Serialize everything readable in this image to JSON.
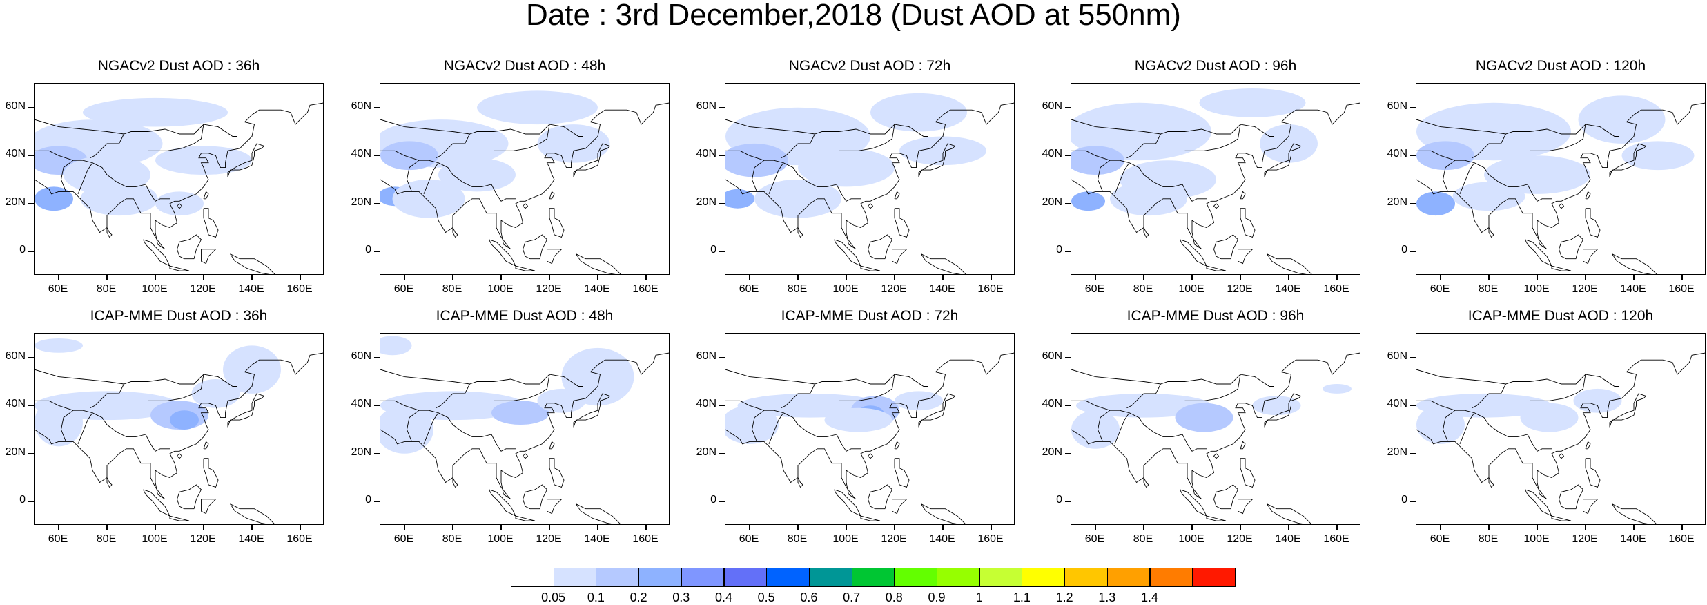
{
  "title": "Date : 3rd December,2018 (Dust AOD at 550nm)",
  "panels": [
    {
      "title": "NGACv2 Dust AOD : 36h"
    },
    {
      "title": "NGACv2 Dust AOD : 48h"
    },
    {
      "title": "NGACv2 Dust AOD : 72h"
    },
    {
      "title": "NGACv2 Dust AOD : 96h"
    },
    {
      "title": "NGACv2 Dust AOD : 120h"
    },
    {
      "title": "ICAP-MME Dust AOD : 36h"
    },
    {
      "title": "ICAP-MME Dust AOD : 48h"
    },
    {
      "title": "ICAP-MME Dust AOD : 72h"
    },
    {
      "title": "ICAP-MME Dust AOD : 96h"
    },
    {
      "title": "ICAP-MME Dust AOD : 120h"
    }
  ],
  "axes": {
    "lat_ticks": [
      "60N",
      "40N",
      "20N",
      "0"
    ],
    "lon_ticks": [
      "60E",
      "80E",
      "100E",
      "120E",
      "140E",
      "160E"
    ]
  },
  "colorbar": {
    "labels": [
      "0.05",
      "0.1",
      "0.2",
      "0.3",
      "0.4",
      "0.5",
      "0.6",
      "0.7",
      "0.8",
      "0.9",
      "1",
      "1.1",
      "1.2",
      "1.3",
      "1.4"
    ],
    "colors": [
      "#ffffff",
      "#d6e2ff",
      "#b5c9ff",
      "#8eb2ff",
      "#7f96ff",
      "#6370f8",
      "#0063ff",
      "#009696",
      "#00c633",
      "#63ff00",
      "#96ff00",
      "#c6ff33",
      "#ffff00",
      "#ffc600",
      "#ffa000",
      "#ff7c00",
      "#ff1900"
    ]
  }
}
